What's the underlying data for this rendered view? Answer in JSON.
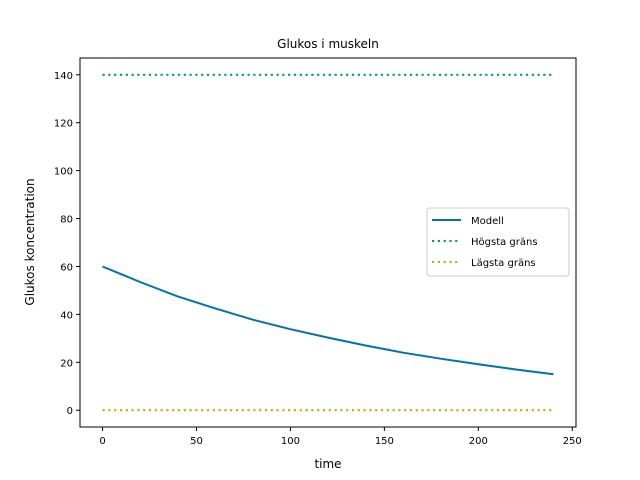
{
  "chart_data": {
    "type": "line",
    "title": "Glukos i muskeln",
    "xlabel": "time",
    "ylabel": "Glukos koncentration",
    "xlim": [
      -12,
      252
    ],
    "ylim": [
      -7,
      147
    ],
    "xticks": [
      0,
      50,
      100,
      150,
      200,
      250
    ],
    "yticks": [
      0,
      20,
      40,
      60,
      80,
      100,
      120,
      140
    ],
    "grid": false,
    "legend_position": "center-right",
    "series": [
      {
        "name": "Modell",
        "style": "solid",
        "color": "#0072b2",
        "x": [
          0,
          20,
          40,
          60,
          80,
          100,
          120,
          140,
          160,
          180,
          200,
          220,
          240
        ],
        "y": [
          60,
          53.5,
          47.5,
          42.5,
          37.8,
          33.8,
          30.3,
          27.0,
          24.0,
          21.5,
          19.2,
          17.0,
          15.0
        ]
      },
      {
        "name": "Högsta gräns",
        "style": "dotted",
        "color": "#009e73",
        "x": [
          0,
          240
        ],
        "y": [
          140,
          140
        ]
      },
      {
        "name": "Lägsta gräns",
        "style": "dotted",
        "color": "#e69f00",
        "x": [
          0,
          240
        ],
        "y": [
          0,
          0
        ]
      }
    ]
  }
}
